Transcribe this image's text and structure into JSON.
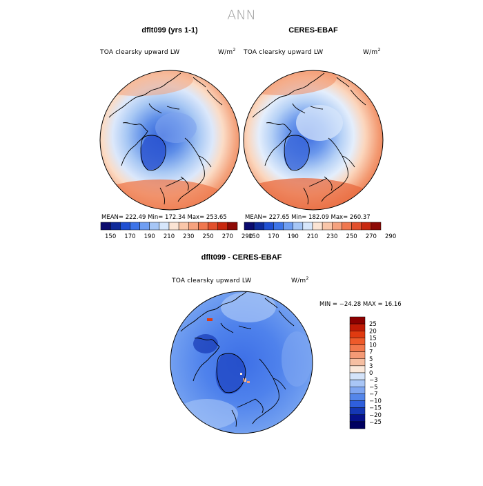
{
  "figure": {
    "title": "ANN"
  },
  "panels": {
    "model": {
      "title": "dflt099 (yrs 1-1)",
      "var_label": "TOA clearsky upward LW",
      "units_main": "W/m",
      "units_exp": "2",
      "stats": "MEAN= 222.49    Min= 172.34    Max= 253.65"
    },
    "obs": {
      "title": "CERES-EBAF",
      "var_label": "TOA clearsky upward LW",
      "units_main": "W/m",
      "units_exp": "2",
      "stats": "MEAN= 227.65    Min= 182.09    Max= 260.37"
    },
    "diff": {
      "title": "dflt099 - CERES-EBAF",
      "var_label": "TOA clearsky upward LW",
      "units_main": "W/m",
      "units_exp": "2",
      "stats": "MIN = −24.28  MAX =   16.16"
    }
  },
  "colorbar_abs": {
    "ticks": [
      "150",
      "170",
      "190",
      "210",
      "230",
      "250",
      "270",
      "290"
    ],
    "colors": [
      "#0a0a6e",
      "#0e2a9a",
      "#1f4fd2",
      "#3d74e8",
      "#6f9ef2",
      "#a6c6f6",
      "#d6e6fb",
      "#fbe4d4",
      "#f9c6a9",
      "#f6a27e",
      "#f0784f",
      "#e2502c",
      "#c8280f",
      "#8e0a06"
    ]
  },
  "colorbar_diff": {
    "ticks": [
      "25",
      "20",
      "15",
      "10",
      "7",
      "5",
      "3",
      "0",
      "−3",
      "−5",
      "−7",
      "−10",
      "−15",
      "−20",
      "−25"
    ],
    "colors": [
      "#8c0000",
      "#c01a05",
      "#e03a10",
      "#ee5a2a",
      "#f2784c",
      "#f49a76",
      "#f6bfa2",
      "#fbe8da",
      "#d4e3f9",
      "#a9c6f6",
      "#7fa6f1",
      "#5486ea",
      "#2f5fdc",
      "#1537b4",
      "#06118a",
      "#000060"
    ]
  }
}
